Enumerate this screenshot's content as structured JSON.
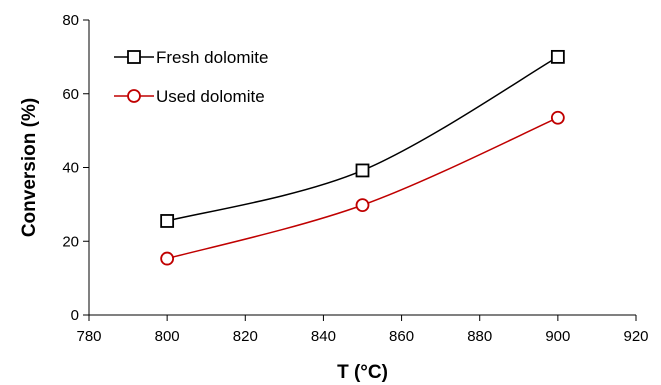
{
  "chart_data": {
    "type": "line",
    "title": "",
    "xlabel": "T (°C)",
    "ylabel": "Conversion (%)",
    "xlim": [
      780,
      920
    ],
    "ylim": [
      0,
      80
    ],
    "xticks": [
      780,
      800,
      820,
      840,
      860,
      880,
      900,
      920
    ],
    "yticks": [
      0,
      20,
      40,
      60,
      80
    ],
    "grid": false,
    "legend_position": "top-left",
    "series": [
      {
        "name": "Fresh dolomite",
        "marker": "square",
        "color": "#000000",
        "x": [
          800,
          850,
          900
        ],
        "y": [
          25.5,
          39.2,
          70.0
        ]
      },
      {
        "name": "Used dolomite",
        "marker": "circle",
        "color": "#c00000",
        "x": [
          800,
          850,
          900
        ],
        "y": [
          15.3,
          29.8,
          53.5
        ]
      }
    ]
  }
}
